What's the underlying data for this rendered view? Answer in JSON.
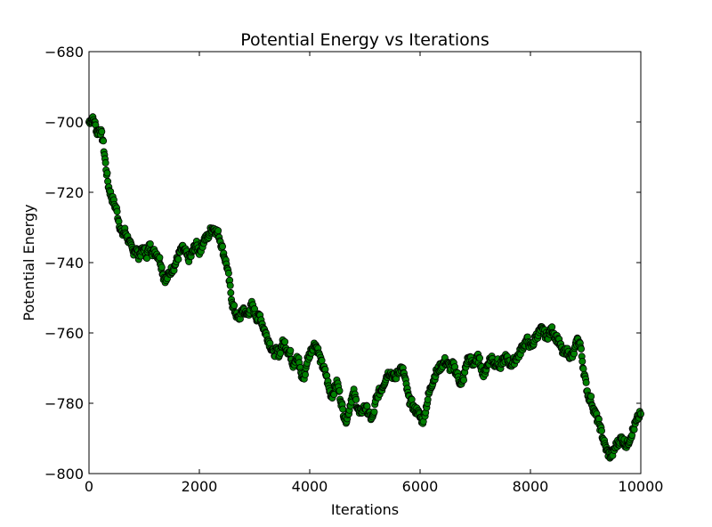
{
  "chart_data": {
    "type": "scatter",
    "title": "Potential Energy vs Iterations",
    "xlabel": "Iterations",
    "ylabel": "Potential Energy",
    "xlim": [
      0,
      10000
    ],
    "ylim": [
      -800,
      -680
    ],
    "xticks": [
      0,
      2000,
      4000,
      6000,
      8000,
      10000
    ],
    "yticks": [
      -800,
      -780,
      -760,
      -740,
      -720,
      -700,
      -680
    ],
    "grid": false,
    "marker_color": "#008000",
    "marker_edge": "#000000",
    "series": [
      {
        "points": [
          [
            0,
            -700
          ],
          [
            50,
            -699
          ],
          [
            100,
            -700
          ],
          [
            150,
            -703
          ],
          [
            200,
            -702
          ],
          [
            250,
            -705
          ],
          [
            300,
            -712
          ],
          [
            350,
            -718
          ],
          [
            400,
            -721
          ],
          [
            450,
            -723
          ],
          [
            500,
            -725
          ],
          [
            550,
            -729
          ],
          [
            600,
            -732
          ],
          [
            650,
            -731
          ],
          [
            700,
            -733
          ],
          [
            750,
            -735
          ],
          [
            800,
            -737
          ],
          [
            850,
            -736
          ],
          [
            900,
            -738
          ],
          [
            950,
            -737
          ],
          [
            1000,
            -736
          ],
          [
            1050,
            -738
          ],
          [
            1100,
            -735
          ],
          [
            1150,
            -737
          ],
          [
            1200,
            -737
          ],
          [
            1250,
            -738
          ],
          [
            1300,
            -740
          ],
          [
            1350,
            -744
          ],
          [
            1400,
            -745
          ],
          [
            1450,
            -743
          ],
          [
            1500,
            -742
          ],
          [
            1550,
            -741
          ],
          [
            1600,
            -739
          ],
          [
            1650,
            -737
          ],
          [
            1700,
            -736
          ],
          [
            1750,
            -737
          ],
          [
            1800,
            -739
          ],
          [
            1850,
            -738
          ],
          [
            1900,
            -736
          ],
          [
            1950,
            -735
          ],
          [
            2000,
            -737
          ],
          [
            2050,
            -735
          ],
          [
            2100,
            -733
          ],
          [
            2150,
            -733
          ],
          [
            2200,
            -731
          ],
          [
            2250,
            -730
          ],
          [
            2300,
            -731
          ],
          [
            2350,
            -732
          ],
          [
            2400,
            -735
          ],
          [
            2450,
            -738
          ],
          [
            2500,
            -741
          ],
          [
            2550,
            -746
          ],
          [
            2600,
            -752
          ],
          [
            2650,
            -754
          ],
          [
            2700,
            -756
          ],
          [
            2750,
            -755
          ],
          [
            2800,
            -753
          ],
          [
            2850,
            -755
          ],
          [
            2900,
            -754
          ],
          [
            2950,
            -752
          ],
          [
            3000,
            -754
          ],
          [
            3050,
            -756
          ],
          [
            3100,
            -755
          ],
          [
            3150,
            -758
          ],
          [
            3200,
            -760
          ],
          [
            3250,
            -762
          ],
          [
            3300,
            -764
          ],
          [
            3350,
            -766
          ],
          [
            3400,
            -765
          ],
          [
            3450,
            -766
          ],
          [
            3500,
            -763
          ],
          [
            3550,
            -763
          ],
          [
            3600,
            -765
          ],
          [
            3650,
            -766
          ],
          [
            3700,
            -769
          ],
          [
            3750,
            -767
          ],
          [
            3800,
            -768
          ],
          [
            3850,
            -772
          ],
          [
            3900,
            -773
          ],
          [
            3950,
            -768
          ],
          [
            4000,
            -766
          ],
          [
            4050,
            -764
          ],
          [
            4100,
            -763
          ],
          [
            4150,
            -765
          ],
          [
            4200,
            -768
          ],
          [
            4250,
            -770
          ],
          [
            4300,
            -772
          ],
          [
            4350,
            -776
          ],
          [
            4400,
            -778
          ],
          [
            4450,
            -776
          ],
          [
            4500,
            -774
          ],
          [
            4550,
            -778
          ],
          [
            4600,
            -782
          ],
          [
            4650,
            -785
          ],
          [
            4700,
            -783
          ],
          [
            4750,
            -779
          ],
          [
            4800,
            -777
          ],
          [
            4850,
            -780
          ],
          [
            4900,
            -783
          ],
          [
            4950,
            -782
          ],
          [
            5000,
            -781
          ],
          [
            5050,
            -782
          ],
          [
            5100,
            -784
          ],
          [
            5150,
            -784
          ],
          [
            5200,
            -779
          ],
          [
            5250,
            -777
          ],
          [
            5300,
            -776
          ],
          [
            5350,
            -774
          ],
          [
            5400,
            -772
          ],
          [
            5450,
            -771
          ],
          [
            5500,
            -772
          ],
          [
            5550,
            -773
          ],
          [
            5600,
            -771
          ],
          [
            5650,
            -770
          ],
          [
            5700,
            -771
          ],
          [
            5750,
            -775
          ],
          [
            5800,
            -779
          ],
          [
            5850,
            -780
          ],
          [
            5900,
            -782
          ],
          [
            5950,
            -782
          ],
          [
            6000,
            -784
          ],
          [
            6050,
            -785
          ],
          [
            6100,
            -782
          ],
          [
            6150,
            -778
          ],
          [
            6200,
            -775
          ],
          [
            6250,
            -773
          ],
          [
            6300,
            -771
          ],
          [
            6350,
            -770
          ],
          [
            6400,
            -769
          ],
          [
            6450,
            -768
          ],
          [
            6500,
            -769
          ],
          [
            6550,
            -770
          ],
          [
            6600,
            -769
          ],
          [
            6650,
            -771
          ],
          [
            6700,
            -773
          ],
          [
            6750,
            -775
          ],
          [
            6800,
            -772
          ],
          [
            6850,
            -768
          ],
          [
            6900,
            -767
          ],
          [
            6950,
            -769
          ],
          [
            7000,
            -768
          ],
          [
            7050,
            -767
          ],
          [
            7100,
            -769
          ],
          [
            7150,
            -772
          ],
          [
            7200,
            -770
          ],
          [
            7250,
            -768
          ],
          [
            7300,
            -767
          ],
          [
            7350,
            -769
          ],
          [
            7400,
            -768
          ],
          [
            7450,
            -770
          ],
          [
            7500,
            -768
          ],
          [
            7550,
            -767
          ],
          [
            7600,
            -768
          ],
          [
            7650,
            -769
          ],
          [
            7700,
            -768
          ],
          [
            7750,
            -767
          ],
          [
            7800,
            -766
          ],
          [
            7850,
            -764
          ],
          [
            7900,
            -763
          ],
          [
            7950,
            -762
          ],
          [
            8000,
            -764
          ],
          [
            8050,
            -763
          ],
          [
            8100,
            -761
          ],
          [
            8150,
            -760
          ],
          [
            8200,
            -759
          ],
          [
            8250,
            -760
          ],
          [
            8300,
            -761
          ],
          [
            8350,
            -760
          ],
          [
            8400,
            -759
          ],
          [
            8450,
            -761
          ],
          [
            8500,
            -762
          ],
          [
            8550,
            -764
          ],
          [
            8600,
            -766
          ],
          [
            8650,
            -765
          ],
          [
            8700,
            -766
          ],
          [
            8750,
            -767
          ],
          [
            8800,
            -765
          ],
          [
            8850,
            -762
          ],
          [
            8900,
            -763
          ],
          [
            8950,
            -769
          ],
          [
            9000,
            -774
          ],
          [
            9050,
            -778
          ],
          [
            9100,
            -779
          ],
          [
            9150,
            -782
          ],
          [
            9200,
            -784
          ],
          [
            9250,
            -786
          ],
          [
            9300,
            -789
          ],
          [
            9350,
            -792
          ],
          [
            9400,
            -794
          ],
          [
            9450,
            -795
          ],
          [
            9500,
            -794
          ],
          [
            9550,
            -792
          ],
          [
            9600,
            -791
          ],
          [
            9650,
            -790
          ],
          [
            9700,
            -791
          ],
          [
            9750,
            -792
          ],
          [
            9800,
            -790
          ],
          [
            9850,
            -788
          ],
          [
            9900,
            -786
          ],
          [
            9950,
            -784
          ],
          [
            10000,
            -783
          ]
        ]
      }
    ]
  }
}
